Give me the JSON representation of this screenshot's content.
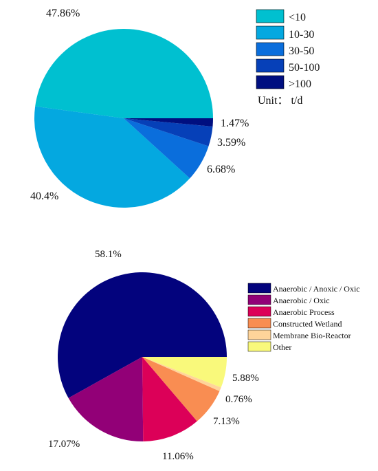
{
  "chart_data": [
    {
      "type": "pie",
      "title": "",
      "categories": [
        "<10",
        "10-30",
        "30-50",
        "50-100",
        ">100"
      ],
      "values": [
        47.86,
        40.4,
        6.68,
        3.59,
        1.47
      ],
      "labels": [
        "47.86%",
        "40.4%",
        "6.68%",
        "3.59%",
        "1.47%"
      ],
      "colors": [
        "#00C0D0",
        "#04A8E0",
        "#0A6EDC",
        "#0640B8",
        "#000F80"
      ],
      "start_angle_deg": 0,
      "direction": "counterclockwise",
      "legend": {
        "placement": "top-right",
        "unit_label": "Unit： t/d"
      }
    },
    {
      "type": "pie",
      "title": "",
      "categories": [
        "Anaerobic / Anoxic / Oxic",
        "Anaerobic / Oxic",
        "Anaerobic Process",
        "Constructed Wetland",
        "Membrane Bio-Reactor",
        "Other"
      ],
      "values": [
        58.1,
        17.07,
        11.06,
        7.13,
        0.76,
        5.88
      ],
      "labels": [
        "58.1%",
        "17.07%",
        "11.06%",
        "7.13%",
        "0.76%",
        "5.88%"
      ],
      "colors": [
        "#03037D",
        "#920077",
        "#DC0058",
        "#F98D52",
        "#FFD49A",
        "#F9F97B"
      ],
      "start_angle_deg": 0,
      "direction": "counterclockwise",
      "legend": {
        "placement": "right"
      }
    }
  ]
}
